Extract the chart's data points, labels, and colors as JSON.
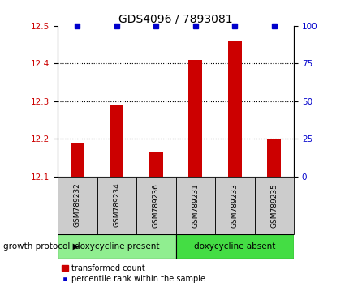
{
  "title": "GDS4096 / 7893081",
  "samples": [
    "GSM789232",
    "GSM789234",
    "GSM789236",
    "GSM789231",
    "GSM789233",
    "GSM789235"
  ],
  "bar_values": [
    12.19,
    12.29,
    12.165,
    12.41,
    12.46,
    12.2
  ],
  "bar_base": 12.1,
  "percentile_values": [
    100,
    100,
    100,
    100,
    100,
    100
  ],
  "left_ylim": [
    12.1,
    12.5
  ],
  "right_ylim": [
    0,
    100
  ],
  "left_yticks": [
    12.1,
    12.2,
    12.3,
    12.4,
    12.5
  ],
  "right_yticks": [
    0,
    25,
    50,
    75,
    100
  ],
  "bar_color": "#cc0000",
  "dot_color": "#0000cc",
  "group1_label": "doxycycline present",
  "group2_label": "doxycycline absent",
  "group1_color": "#90EE90",
  "group2_color": "#44DD44",
  "group_label_left": "growth protocol",
  "legend_bar_label": "transformed count",
  "legend_dot_label": "percentile rank within the sample",
  "title_fontsize": 10,
  "tick_label_fontsize": 7.5,
  "sample_box_color": "#cccccc",
  "grid_lines": [
    12.2,
    12.3,
    12.4
  ]
}
